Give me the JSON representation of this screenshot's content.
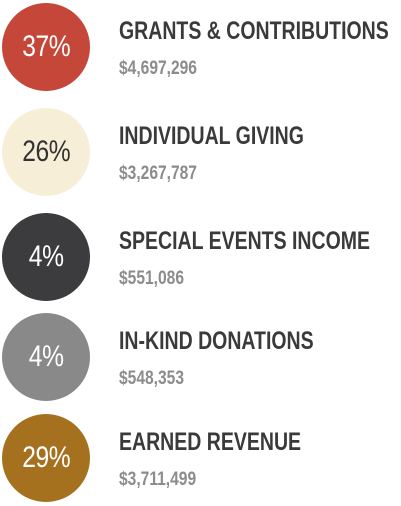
{
  "items": [
    {
      "percent": "37%",
      "label": "GRANTS & CONTRIBUTIONS",
      "amount": "$4,697,296",
      "color": "#c5473a",
      "text_color": "#ffffff"
    },
    {
      "percent": "26%",
      "label": "INDIVIDUAL GIVING",
      "amount": "$3,267,787",
      "color": "#f6eed7",
      "text_color": "#333333"
    },
    {
      "percent": "4%",
      "label": "SPECIAL EVENTS INCOME",
      "amount": "$551,086",
      "color": "#3c3c3e",
      "text_color": "#ffffff"
    },
    {
      "percent": "4%",
      "label": "IN-KIND DONATIONS",
      "amount": "$548,353",
      "color": "#898989",
      "text_color": "#ffffff"
    },
    {
      "percent": "29%",
      "label": "EARNED REVENUE",
      "amount": "$3,711,499",
      "color": "#a6711f",
      "text_color": "#ffffff"
    }
  ]
}
